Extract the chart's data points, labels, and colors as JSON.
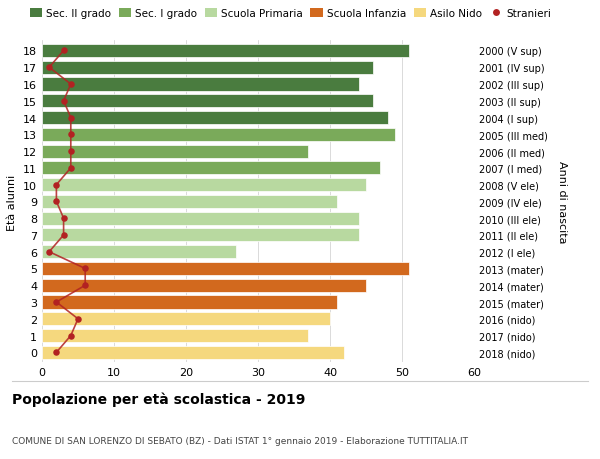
{
  "ages": [
    18,
    17,
    16,
    15,
    14,
    13,
    12,
    11,
    10,
    9,
    8,
    7,
    6,
    5,
    4,
    3,
    2,
    1,
    0
  ],
  "right_labels": [
    "2000 (V sup)",
    "2001 (IV sup)",
    "2002 (III sup)",
    "2003 (II sup)",
    "2004 (I sup)",
    "2005 (III med)",
    "2006 (II med)",
    "2007 (I med)",
    "2008 (V ele)",
    "2009 (IV ele)",
    "2010 (III ele)",
    "2011 (II ele)",
    "2012 (I ele)",
    "2013 (mater)",
    "2014 (mater)",
    "2015 (mater)",
    "2016 (nido)",
    "2017 (nido)",
    "2018 (nido)"
  ],
  "bar_values": [
    51,
    46,
    44,
    46,
    48,
    49,
    37,
    47,
    45,
    41,
    44,
    44,
    27,
    51,
    45,
    41,
    40,
    37,
    42
  ],
  "stranieri_values": [
    3,
    1,
    4,
    3,
    4,
    4,
    4,
    4,
    2,
    2,
    3,
    3,
    1,
    6,
    6,
    2,
    5,
    4,
    2
  ],
  "bar_colors": [
    "#4a7c3f",
    "#4a7c3f",
    "#4a7c3f",
    "#4a7c3f",
    "#4a7c3f",
    "#7aaa5a",
    "#7aaa5a",
    "#7aaa5a",
    "#b8d9a0",
    "#b8d9a0",
    "#b8d9a0",
    "#b8d9a0",
    "#b8d9a0",
    "#d2691e",
    "#d2691e",
    "#d2691e",
    "#f5d87e",
    "#f5d87e",
    "#f5d87e"
  ],
  "legend_labels": [
    "Sec. II grado",
    "Sec. I grado",
    "Scuola Primaria",
    "Scuola Infanzia",
    "Asilo Nido",
    "Stranieri"
  ],
  "legend_colors": [
    "#4a7c3f",
    "#7aaa5a",
    "#b8d9a0",
    "#d2691e",
    "#f5d87e",
    "#b22222"
  ],
  "ylabel": "Età alunni",
  "ylabel_right": "Anni di nascita",
  "title": "Popolazione per età scolastica - 2019",
  "subtitle": "COMUNE DI SAN LORENZO DI SEBATO (BZ) - Dati ISTAT 1° gennaio 2019 - Elaborazione TUTTITALIA.IT",
  "xlim": [
    0,
    60
  ],
  "xticks": [
    0,
    10,
    20,
    30,
    40,
    50,
    60
  ],
  "stranieri_color": "#b22222",
  "line_color": "#b22222",
  "bg_color": "#ffffff",
  "bar_height": 0.78,
  "ylim_bottom": -0.6,
  "ylim_top": 18.6
}
